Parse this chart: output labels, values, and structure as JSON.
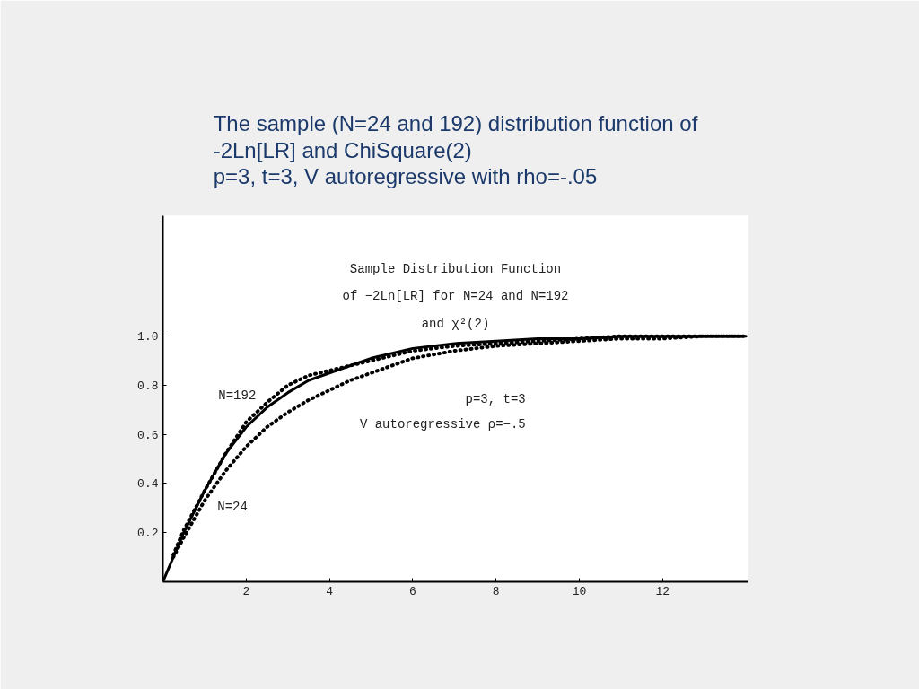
{
  "chart_data": {
    "type": "line",
    "title": "The sample (N=24 and 192) distribution function of\n-2Ln[LR] and ChiSquare(2)\np=3, t=3, V  autoregressive with rho=-.05",
    "series": [
      {
        "color": "#000000",
        "line_style": "solid",
        "x": [
          0,
          0.5,
          1,
          1.5,
          2,
          2.5,
          3,
          3.5,
          4,
          4.5,
          5,
          6,
          7,
          8,
          9,
          10,
          11,
          12,
          13,
          14
        ],
        "values": [
          0,
          0.2,
          0.37,
          0.52,
          0.63,
          0.71,
          0.77,
          0.82,
          0.85,
          0.88,
          0.91,
          0.95,
          0.97,
          0.98,
          0.99,
          0.99,
          1.0,
          1.0,
          1.0,
          1.0
        ]
      },
      {
        "name": "N=192",
        "color": "#000000",
        "line_style": "dotted",
        "x": [
          0.25,
          0.5,
          1,
          1.5,
          2,
          2.5,
          3,
          3.5,
          4,
          4.5,
          5,
          6,
          7,
          8,
          9,
          10,
          11,
          12,
          13,
          14
        ],
        "values": [
          0.11,
          0.21,
          0.37,
          0.52,
          0.65,
          0.73,
          0.8,
          0.84,
          0.86,
          0.88,
          0.9,
          0.94,
          0.96,
          0.97,
          0.98,
          0.99,
          1.0,
          1.0,
          1.0,
          1.0
        ]
      },
      {
        "name": "N=24",
        "color": "#000000",
        "line_style": "dotted",
        "x": [
          0.25,
          0.5,
          1,
          1.5,
          2,
          2.5,
          3,
          3.5,
          4,
          4.5,
          5,
          6,
          7,
          8,
          9,
          10,
          11,
          12,
          13,
          13.9
        ],
        "values": [
          0.1,
          0.18,
          0.33,
          0.45,
          0.55,
          0.63,
          0.69,
          0.74,
          0.78,
          0.82,
          0.85,
          0.91,
          0.94,
          0.96,
          0.97,
          0.98,
          0.99,
          0.99,
          1.0,
          1.0
        ]
      }
    ],
    "annotations": [
      "Sample Distribution Function\nof −2Ln[LR] for N=24 and N=192\nand χ²(2)",
      "p=3, t=3",
      "V autoregressive ρ=−.5"
    ],
    "xlim": [
      0,
      14.05
    ],
    "ylim": [
      0,
      1.49
    ],
    "xticks": [
      2,
      4,
      6,
      8,
      10,
      12
    ],
    "yticks": [
      {
        "value": 0.2,
        "label": "0.2"
      },
      {
        "value": 0.4,
        "label": "0.4"
      },
      {
        "value": 0.6,
        "label": "0.6"
      },
      {
        "value": 0.8,
        "label": "0.8"
      },
      {
        "value": 1.0,
        "label": "1.0"
      }
    ],
    "grid": false,
    "legend": false,
    "marker": "none"
  }
}
